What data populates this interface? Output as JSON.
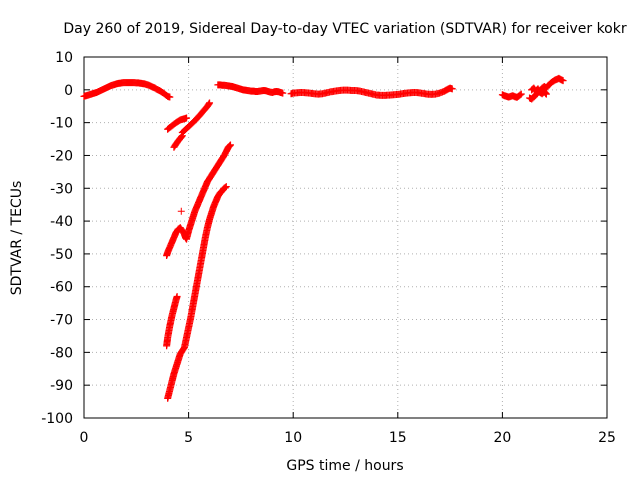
{
  "chart_data": {
    "type": "scatter",
    "title": "Day 260 of 2019, Sidereal Day-to-day VTEC variation (SDTVAR) for receiver kokr",
    "xlabel": "GPS time / hours",
    "ylabel": "SDTVAR / TECUs",
    "xlim": [
      0,
      25
    ],
    "ylim": [
      -100,
      10
    ],
    "x_ticks": [
      0,
      5,
      10,
      15,
      20,
      25
    ],
    "y_ticks": [
      10,
      0,
      -10,
      -20,
      -30,
      -40,
      -50,
      -60,
      -70,
      -80,
      -90,
      -100
    ],
    "grid": true,
    "marker": "+",
    "color": "#ff0000",
    "series": [
      {
        "points": [
          [
            0.0,
            -2.0
          ],
          [
            0.1,
            -1.8
          ],
          [
            0.2,
            -1.6
          ],
          [
            0.3,
            -1.4
          ],
          [
            0.4,
            -1.2
          ],
          [
            0.5,
            -1.0
          ],
          [
            0.6,
            -0.8
          ],
          [
            0.7,
            -0.5
          ],
          [
            0.8,
            -0.2
          ],
          [
            0.9,
            0.1
          ],
          [
            1.0,
            0.4
          ],
          [
            1.1,
            0.7
          ],
          [
            1.2,
            1.0
          ],
          [
            1.3,
            1.3
          ],
          [
            1.4,
            1.5
          ],
          [
            1.5,
            1.7
          ],
          [
            1.6,
            1.9
          ],
          [
            1.7,
            2.0
          ],
          [
            1.8,
            2.1
          ],
          [
            1.9,
            2.2
          ],
          [
            2.0,
            2.2
          ],
          [
            2.1,
            2.2
          ],
          [
            2.2,
            2.2
          ],
          [
            2.3,
            2.2
          ],
          [
            2.4,
            2.2
          ],
          [
            2.5,
            2.1
          ],
          [
            2.6,
            2.1
          ],
          [
            2.7,
            2.0
          ],
          [
            2.8,
            1.9
          ],
          [
            2.9,
            1.8
          ],
          [
            3.0,
            1.6
          ],
          [
            3.1,
            1.4
          ],
          [
            3.2,
            1.1
          ],
          [
            3.3,
            0.8
          ],
          [
            3.4,
            0.5
          ],
          [
            3.5,
            0.1
          ],
          [
            3.6,
            -0.2
          ],
          [
            3.7,
            -0.6
          ],
          [
            3.8,
            -1.0
          ],
          [
            3.9,
            -1.5
          ],
          [
            4.0,
            -2.0
          ],
          [
            4.1,
            -2.2
          ]
        ]
      },
      {
        "points": [
          [
            4.0,
            -12.0
          ],
          [
            4.1,
            -11.5
          ],
          [
            4.2,
            -11.0
          ],
          [
            4.3,
            -10.5
          ],
          [
            4.4,
            -10.0
          ],
          [
            4.5,
            -9.6
          ],
          [
            4.6,
            -9.2
          ],
          [
            4.7,
            -9.0
          ],
          [
            4.8,
            -8.8
          ],
          [
            4.9,
            -8.6
          ]
        ]
      },
      {
        "points": [
          [
            4.3,
            -17.5
          ],
          [
            4.4,
            -16.5
          ],
          [
            4.5,
            -15.6
          ],
          [
            4.6,
            -14.8
          ],
          [
            4.7,
            -14.0
          ]
        ]
      },
      {
        "points": [
          [
            4.7,
            -13.0
          ],
          [
            4.9,
            -11.8
          ],
          [
            5.1,
            -10.6
          ],
          [
            5.3,
            -9.4
          ],
          [
            5.5,
            -8.0
          ],
          [
            5.7,
            -6.5
          ],
          [
            5.9,
            -5.0
          ],
          [
            6.0,
            -4.0
          ]
        ]
      },
      {
        "points": [
          [
            3.95,
            -50.5
          ],
          [
            4.0,
            -49.5
          ],
          [
            4.1,
            -48.0
          ],
          [
            4.2,
            -46.5
          ],
          [
            4.3,
            -45.0
          ],
          [
            4.4,
            -43.5
          ],
          [
            4.5,
            -42.5
          ],
          [
            4.6,
            -42.0
          ],
          [
            4.7,
            -43.0
          ],
          [
            4.8,
            -44.0
          ],
          [
            4.85,
            -45.0
          ],
          [
            4.9,
            -45.5
          ],
          [
            5.0,
            -43.0
          ],
          [
            5.1,
            -41.0
          ],
          [
            5.2,
            -39.0
          ],
          [
            5.3,
            -37.0
          ],
          [
            5.4,
            -35.5
          ],
          [
            5.5,
            -34.0
          ],
          [
            5.6,
            -32.5
          ],
          [
            5.7,
            -31.0
          ],
          [
            5.8,
            -29.5
          ],
          [
            5.9,
            -28.0
          ],
          [
            6.0,
            -27.0
          ],
          [
            6.1,
            -26.0
          ],
          [
            6.2,
            -25.0
          ],
          [
            6.3,
            -24.0
          ],
          [
            6.4,
            -23.0
          ],
          [
            6.5,
            -22.0
          ],
          [
            6.6,
            -21.0
          ],
          [
            6.7,
            -20.0
          ],
          [
            6.8,
            -18.8
          ],
          [
            6.9,
            -17.5
          ],
          [
            7.0,
            -16.8
          ]
        ]
      },
      {
        "points": [
          [
            4.65,
            -37.0
          ]
        ]
      },
      {
        "points": [
          [
            3.95,
            -78.0
          ],
          [
            4.0,
            -75.5
          ],
          [
            4.1,
            -72.0
          ],
          [
            4.2,
            -69.0
          ],
          [
            4.3,
            -66.5
          ],
          [
            4.4,
            -64.0
          ],
          [
            4.45,
            -63.0
          ]
        ]
      },
      {
        "points": [
          [
            4.0,
            -94.0
          ],
          [
            4.1,
            -91.5
          ],
          [
            4.2,
            -89.0
          ],
          [
            4.3,
            -86.5
          ],
          [
            4.4,
            -84.5
          ],
          [
            4.5,
            -82.5
          ],
          [
            4.6,
            -80.5
          ],
          [
            4.7,
            -79.5
          ],
          [
            4.8,
            -78.5
          ],
          [
            4.9,
            -75.5
          ],
          [
            5.0,
            -72.5
          ],
          [
            5.1,
            -69.5
          ],
          [
            5.2,
            -66.0
          ],
          [
            5.3,
            -62.5
          ],
          [
            5.4,
            -59.0
          ],
          [
            5.5,
            -55.5
          ],
          [
            5.6,
            -52.0
          ],
          [
            5.7,
            -48.5
          ],
          [
            5.8,
            -45.0
          ],
          [
            5.9,
            -42.0
          ],
          [
            6.0,
            -39.5
          ],
          [
            6.1,
            -37.5
          ],
          [
            6.2,
            -35.5
          ],
          [
            6.3,
            -34.0
          ],
          [
            6.4,
            -32.5
          ],
          [
            6.5,
            -31.5
          ],
          [
            6.6,
            -30.8
          ],
          [
            6.7,
            -30.0
          ],
          [
            6.8,
            -29.5
          ]
        ]
      },
      {
        "points": [
          [
            6.4,
            1.5
          ],
          [
            6.5,
            1.5
          ],
          [
            6.6,
            1.4
          ],
          [
            6.7,
            1.4
          ],
          [
            6.8,
            1.3
          ],
          [
            6.9,
            1.2
          ],
          [
            7.0,
            1.1
          ],
          [
            7.1,
            1.0
          ],
          [
            7.2,
            0.8
          ],
          [
            7.3,
            0.6
          ],
          [
            7.4,
            0.4
          ],
          [
            7.5,
            0.2
          ],
          [
            7.6,
            0.0
          ],
          [
            7.7,
            -0.1
          ],
          [
            7.8,
            -0.2
          ],
          [
            7.9,
            -0.3
          ],
          [
            8.0,
            -0.4
          ],
          [
            8.1,
            -0.4
          ],
          [
            8.2,
            -0.5
          ],
          [
            8.3,
            -0.5
          ],
          [
            8.4,
            -0.4
          ],
          [
            8.5,
            -0.3
          ],
          [
            8.6,
            -0.2
          ],
          [
            8.7,
            -0.3
          ],
          [
            8.8,
            -0.5
          ],
          [
            8.9,
            -0.7
          ],
          [
            9.0,
            -0.8
          ],
          [
            9.1,
            -0.6
          ],
          [
            9.2,
            -0.5
          ],
          [
            9.3,
            -0.6
          ],
          [
            9.4,
            -0.8
          ],
          [
            9.5,
            -1.0
          ]
        ]
      },
      {
        "points": [
          [
            9.9,
            -1.2
          ],
          [
            10.0,
            -1.0
          ],
          [
            10.2,
            -0.9
          ],
          [
            10.4,
            -0.8
          ],
          [
            10.6,
            -0.9
          ],
          [
            10.8,
            -1.0
          ],
          [
            11.0,
            -1.2
          ],
          [
            11.2,
            -1.3
          ],
          [
            11.4,
            -1.2
          ],
          [
            11.6,
            -0.9
          ],
          [
            11.8,
            -0.6
          ],
          [
            12.0,
            -0.4
          ],
          [
            12.2,
            -0.2
          ],
          [
            12.4,
            -0.1
          ],
          [
            12.6,
            -0.1
          ],
          [
            12.8,
            -0.2
          ],
          [
            13.0,
            -0.2
          ],
          [
            13.2,
            -0.4
          ],
          [
            13.4,
            -0.7
          ],
          [
            13.6,
            -1.0
          ],
          [
            13.8,
            -1.3
          ],
          [
            14.0,
            -1.6
          ],
          [
            14.2,
            -1.7
          ],
          [
            14.4,
            -1.7
          ],
          [
            14.6,
            -1.6
          ],
          [
            14.8,
            -1.5
          ],
          [
            15.0,
            -1.4
          ],
          [
            15.2,
            -1.2
          ],
          [
            15.4,
            -1.0
          ],
          [
            15.6,
            -0.9
          ],
          [
            15.8,
            -0.8
          ],
          [
            16.0,
            -0.9
          ],
          [
            16.2,
            -1.1
          ],
          [
            16.4,
            -1.3
          ],
          [
            16.6,
            -1.4
          ],
          [
            16.8,
            -1.3
          ],
          [
            17.0,
            -1.0
          ],
          [
            17.2,
            -0.5
          ],
          [
            17.4,
            0.2
          ],
          [
            17.5,
            0.5
          ],
          [
            17.6,
            0.3
          ]
        ]
      },
      {
        "points": [
          [
            20.0,
            -1.5
          ],
          [
            20.1,
            -1.8
          ],
          [
            20.2,
            -2.0
          ],
          [
            20.3,
            -2.2
          ],
          [
            20.4,
            -2.0
          ],
          [
            20.5,
            -1.8
          ],
          [
            20.6,
            -2.1
          ],
          [
            20.7,
            -2.3
          ],
          [
            20.8,
            -1.8
          ],
          [
            20.9,
            -1.3
          ]
        ]
      },
      {
        "points": [
          [
            21.3,
            -2.5
          ],
          [
            21.4,
            -2.8
          ],
          [
            21.5,
            -2.2
          ],
          [
            21.6,
            -1.5
          ],
          [
            21.7,
            -0.8
          ],
          [
            21.8,
            -0.2
          ],
          [
            21.9,
            0.5
          ],
          [
            22.0,
            1.0
          ],
          [
            22.1,
            0.6
          ],
          [
            22.2,
            1.4
          ],
          [
            22.3,
            2.0
          ],
          [
            22.4,
            2.5
          ],
          [
            22.5,
            2.9
          ],
          [
            22.6,
            3.2
          ],
          [
            22.7,
            3.5
          ],
          [
            22.8,
            3.1
          ],
          [
            22.9,
            2.8
          ]
        ]
      },
      {
        "points": [
          [
            21.4,
            0.0
          ],
          [
            21.5,
            0.5
          ],
          [
            21.6,
            -0.4
          ],
          [
            21.7,
            0.3
          ],
          [
            21.8,
            -0.8
          ],
          [
            21.9,
            -1.2
          ],
          [
            22.0,
            -0.6
          ],
          [
            22.1,
            -1.3
          ]
        ]
      }
    ]
  }
}
